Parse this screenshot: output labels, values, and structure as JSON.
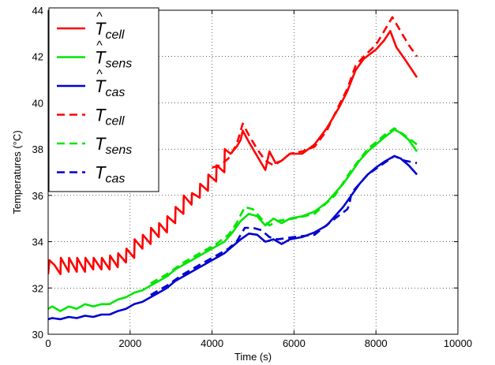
{
  "chart_data": {
    "type": "line",
    "xlabel": "Time (s)",
    "ylabel": "Temperatures (°C)",
    "xlim": [
      0,
      10000
    ],
    "ylim": [
      30,
      44
    ],
    "xticks": [
      0,
      2000,
      4000,
      6000,
      8000,
      10000
    ],
    "yticks": [
      30,
      32,
      34,
      36,
      38,
      40,
      42,
      44
    ],
    "grid": true,
    "legend_position": "top-left",
    "series": [
      {
        "name": "T̂cell",
        "name_base": "T",
        "name_hat": true,
        "name_sub": "cell",
        "color": "#ff0000",
        "dash": "solid",
        "points": [
          [
            0,
            32.6
          ],
          [
            30,
            33.2
          ],
          [
            150,
            33.0
          ],
          [
            300,
            32.6
          ],
          [
            310,
            33.3
          ],
          [
            500,
            32.7
          ],
          [
            510,
            33.3
          ],
          [
            700,
            32.7
          ],
          [
            710,
            33.3
          ],
          [
            900,
            32.7
          ],
          [
            910,
            33.3
          ],
          [
            1100,
            32.8
          ],
          [
            1110,
            33.3
          ],
          [
            1300,
            32.8
          ],
          [
            1310,
            33.3
          ],
          [
            1500,
            32.8
          ],
          [
            1510,
            33.4
          ],
          [
            1700,
            32.9
          ],
          [
            1710,
            33.5
          ],
          [
            1900,
            33.1
          ],
          [
            1910,
            33.7
          ],
          [
            2100,
            33.3
          ],
          [
            2110,
            34.1
          ],
          [
            2300,
            33.7
          ],
          [
            2310,
            34.3
          ],
          [
            2500,
            33.9
          ],
          [
            2510,
            34.6
          ],
          [
            2700,
            34.2
          ],
          [
            2710,
            34.8
          ],
          [
            2900,
            34.4
          ],
          [
            2910,
            35.1
          ],
          [
            3100,
            34.8
          ],
          [
            3110,
            35.5
          ],
          [
            3300,
            35.2
          ],
          [
            3310,
            36.0
          ],
          [
            3500,
            35.6
          ],
          [
            3510,
            36.1
          ],
          [
            3700,
            35.9
          ],
          [
            3710,
            36.5
          ],
          [
            3900,
            36.2
          ],
          [
            3910,
            36.9
          ],
          [
            4100,
            36.6
          ],
          [
            4110,
            37.3
          ],
          [
            4300,
            37.0
          ],
          [
            4310,
            38.0
          ],
          [
            4450,
            37.8
          ],
          [
            4600,
            38.1
          ],
          [
            4700,
            38.4
          ],
          [
            4750,
            38.8
          ],
          [
            4900,
            38.3
          ],
          [
            5100,
            37.7
          ],
          [
            5300,
            37.1
          ],
          [
            5400,
            37.9
          ],
          [
            5550,
            37.4
          ],
          [
            5700,
            37.5
          ],
          [
            5900,
            37.8
          ],
          [
            6200,
            37.8
          ],
          [
            6500,
            38.2
          ],
          [
            6800,
            38.9
          ],
          [
            7100,
            39.8
          ],
          [
            7300,
            40.5
          ],
          [
            7500,
            41.4
          ],
          [
            7700,
            41.9
          ],
          [
            8000,
            42.3
          ],
          [
            8200,
            42.7
          ],
          [
            8350,
            43.1
          ],
          [
            8500,
            42.4
          ],
          [
            8700,
            41.9
          ],
          [
            9000,
            41.1
          ]
        ]
      },
      {
        "name": "T̂sens",
        "name_base": "T",
        "name_hat": true,
        "name_sub": "sens",
        "color": "#00e600",
        "dash": "solid",
        "points": [
          [
            0,
            31.1
          ],
          [
            100,
            31.2
          ],
          [
            300,
            31.0
          ],
          [
            500,
            31.2
          ],
          [
            700,
            31.1
          ],
          [
            900,
            31.3
          ],
          [
            1100,
            31.2
          ],
          [
            1300,
            31.3
          ],
          [
            1500,
            31.3
          ],
          [
            1700,
            31.5
          ],
          [
            1900,
            31.6
          ],
          [
            2100,
            31.8
          ],
          [
            2300,
            31.9
          ],
          [
            2500,
            32.1
          ],
          [
            2700,
            32.3
          ],
          [
            2900,
            32.5
          ],
          [
            3100,
            32.8
          ],
          [
            3300,
            33.0
          ],
          [
            3500,
            33.2
          ],
          [
            3700,
            33.4
          ],
          [
            3900,
            33.6
          ],
          [
            4100,
            33.8
          ],
          [
            4300,
            34.0
          ],
          [
            4500,
            34.4
          ],
          [
            4700,
            34.9
          ],
          [
            4900,
            35.2
          ],
          [
            5100,
            35.1
          ],
          [
            5300,
            34.7
          ],
          [
            5500,
            35.0
          ],
          [
            5700,
            34.8
          ],
          [
            5900,
            35.0
          ],
          [
            6200,
            35.1
          ],
          [
            6500,
            35.3
          ],
          [
            6800,
            35.7
          ],
          [
            7000,
            36.1
          ],
          [
            7200,
            36.5
          ],
          [
            7400,
            37.0
          ],
          [
            7600,
            37.5
          ],
          [
            7800,
            37.9
          ],
          [
            8000,
            38.2
          ],
          [
            8200,
            38.5
          ],
          [
            8450,
            38.85
          ],
          [
            8600,
            38.7
          ],
          [
            8800,
            38.4
          ],
          [
            9000,
            37.9
          ]
        ]
      },
      {
        "name": "T̂cas",
        "name_base": "T",
        "name_hat": true,
        "name_sub": "cas",
        "color": "#0000d0",
        "dash": "solid",
        "points": [
          [
            0,
            30.65
          ],
          [
            100,
            30.7
          ],
          [
            300,
            30.65
          ],
          [
            500,
            30.75
          ],
          [
            700,
            30.7
          ],
          [
            900,
            30.8
          ],
          [
            1100,
            30.75
          ],
          [
            1300,
            30.85
          ],
          [
            1500,
            30.85
          ],
          [
            1700,
            31.0
          ],
          [
            1900,
            31.1
          ],
          [
            2100,
            31.3
          ],
          [
            2300,
            31.4
          ],
          [
            2500,
            31.6
          ],
          [
            2700,
            31.8
          ],
          [
            2900,
            32.0
          ],
          [
            3100,
            32.3
          ],
          [
            3300,
            32.5
          ],
          [
            3500,
            32.7
          ],
          [
            3700,
            32.9
          ],
          [
            3900,
            33.1
          ],
          [
            4100,
            33.3
          ],
          [
            4300,
            33.5
          ],
          [
            4500,
            33.8
          ],
          [
            4700,
            34.1
          ],
          [
            4900,
            34.35
          ],
          [
            5100,
            34.3
          ],
          [
            5300,
            34.0
          ],
          [
            5500,
            34.1
          ],
          [
            5700,
            33.9
          ],
          [
            5900,
            34.1
          ],
          [
            6200,
            34.2
          ],
          [
            6500,
            34.4
          ],
          [
            6800,
            34.7
          ],
          [
            7000,
            35.1
          ],
          [
            7200,
            35.5
          ],
          [
            7400,
            36.0
          ],
          [
            7600,
            36.5
          ],
          [
            7800,
            36.9
          ],
          [
            8000,
            37.2
          ],
          [
            8200,
            37.45
          ],
          [
            8450,
            37.7
          ],
          [
            8600,
            37.6
          ],
          [
            8800,
            37.3
          ],
          [
            9000,
            36.9
          ]
        ]
      },
      {
        "name": "Tcell",
        "name_base": "T",
        "name_hat": false,
        "name_sub": "cell",
        "color": "#ff0000",
        "dash": "dashed",
        "points": [
          [
            4000,
            37.2
          ],
          [
            4200,
            37.3
          ],
          [
            4400,
            37.6
          ],
          [
            4600,
            38.2
          ],
          [
            4750,
            39.1
          ],
          [
            4900,
            38.6
          ],
          [
            5100,
            38.0
          ],
          [
            5300,
            37.5
          ],
          [
            5500,
            37.3
          ],
          [
            5700,
            37.5
          ],
          [
            5900,
            37.8
          ],
          [
            6200,
            37.9
          ],
          [
            6500,
            38.1
          ],
          [
            6800,
            38.8
          ],
          [
            7100,
            39.9
          ],
          [
            7300,
            40.6
          ],
          [
            7500,
            41.6
          ],
          [
            7700,
            42.0
          ],
          [
            8000,
            42.5
          ],
          [
            8200,
            43.1
          ],
          [
            8400,
            43.7
          ],
          [
            8600,
            43.1
          ],
          [
            8800,
            42.5
          ],
          [
            9000,
            42.0
          ]
        ]
      },
      {
        "name": "Tsens",
        "name_base": "T",
        "name_hat": false,
        "name_sub": "sens",
        "color": "#00e600",
        "dash": "dashed",
        "points": [
          [
            2500,
            32.2
          ],
          [
            2900,
            32.6
          ],
          [
            3300,
            33.1
          ],
          [
            3700,
            33.5
          ],
          [
            4100,
            33.9
          ],
          [
            4400,
            34.3
          ],
          [
            4600,
            34.8
          ],
          [
            4800,
            35.5
          ],
          [
            5000,
            35.4
          ],
          [
            5200,
            35.0
          ],
          [
            5400,
            34.7
          ],
          [
            5600,
            34.9
          ],
          [
            6000,
            35.0
          ],
          [
            6500,
            35.2
          ],
          [
            7000,
            36.0
          ],
          [
            7400,
            37.1
          ],
          [
            7800,
            38.0
          ],
          [
            8200,
            38.6
          ],
          [
            8450,
            38.9
          ],
          [
            8700,
            38.6
          ],
          [
            9000,
            38.2
          ]
        ]
      },
      {
        "name": "Tcas",
        "name_base": "T",
        "name_hat": false,
        "name_sub": "cas",
        "color": "#0000d0",
        "dash": "dashed",
        "points": [
          [
            2500,
            31.7
          ],
          [
            2900,
            32.1
          ],
          [
            3300,
            32.6
          ],
          [
            3700,
            33.0
          ],
          [
            4100,
            33.4
          ],
          [
            4400,
            33.7
          ],
          [
            4600,
            34.0
          ],
          [
            4800,
            34.6
          ],
          [
            5000,
            34.6
          ],
          [
            5200,
            34.5
          ],
          [
            5400,
            34.2
          ],
          [
            5600,
            34.1
          ],
          [
            6000,
            34.2
          ],
          [
            6500,
            34.3
          ],
          [
            7000,
            35.0
          ],
          [
            7300,
            35.4
          ],
          [
            7350,
            35.6
          ],
          [
            7400,
            36.1
          ],
          [
            7800,
            36.9
          ],
          [
            8200,
            37.4
          ],
          [
            8450,
            37.7
          ],
          [
            8700,
            37.5
          ],
          [
            9000,
            37.4
          ]
        ]
      }
    ]
  }
}
